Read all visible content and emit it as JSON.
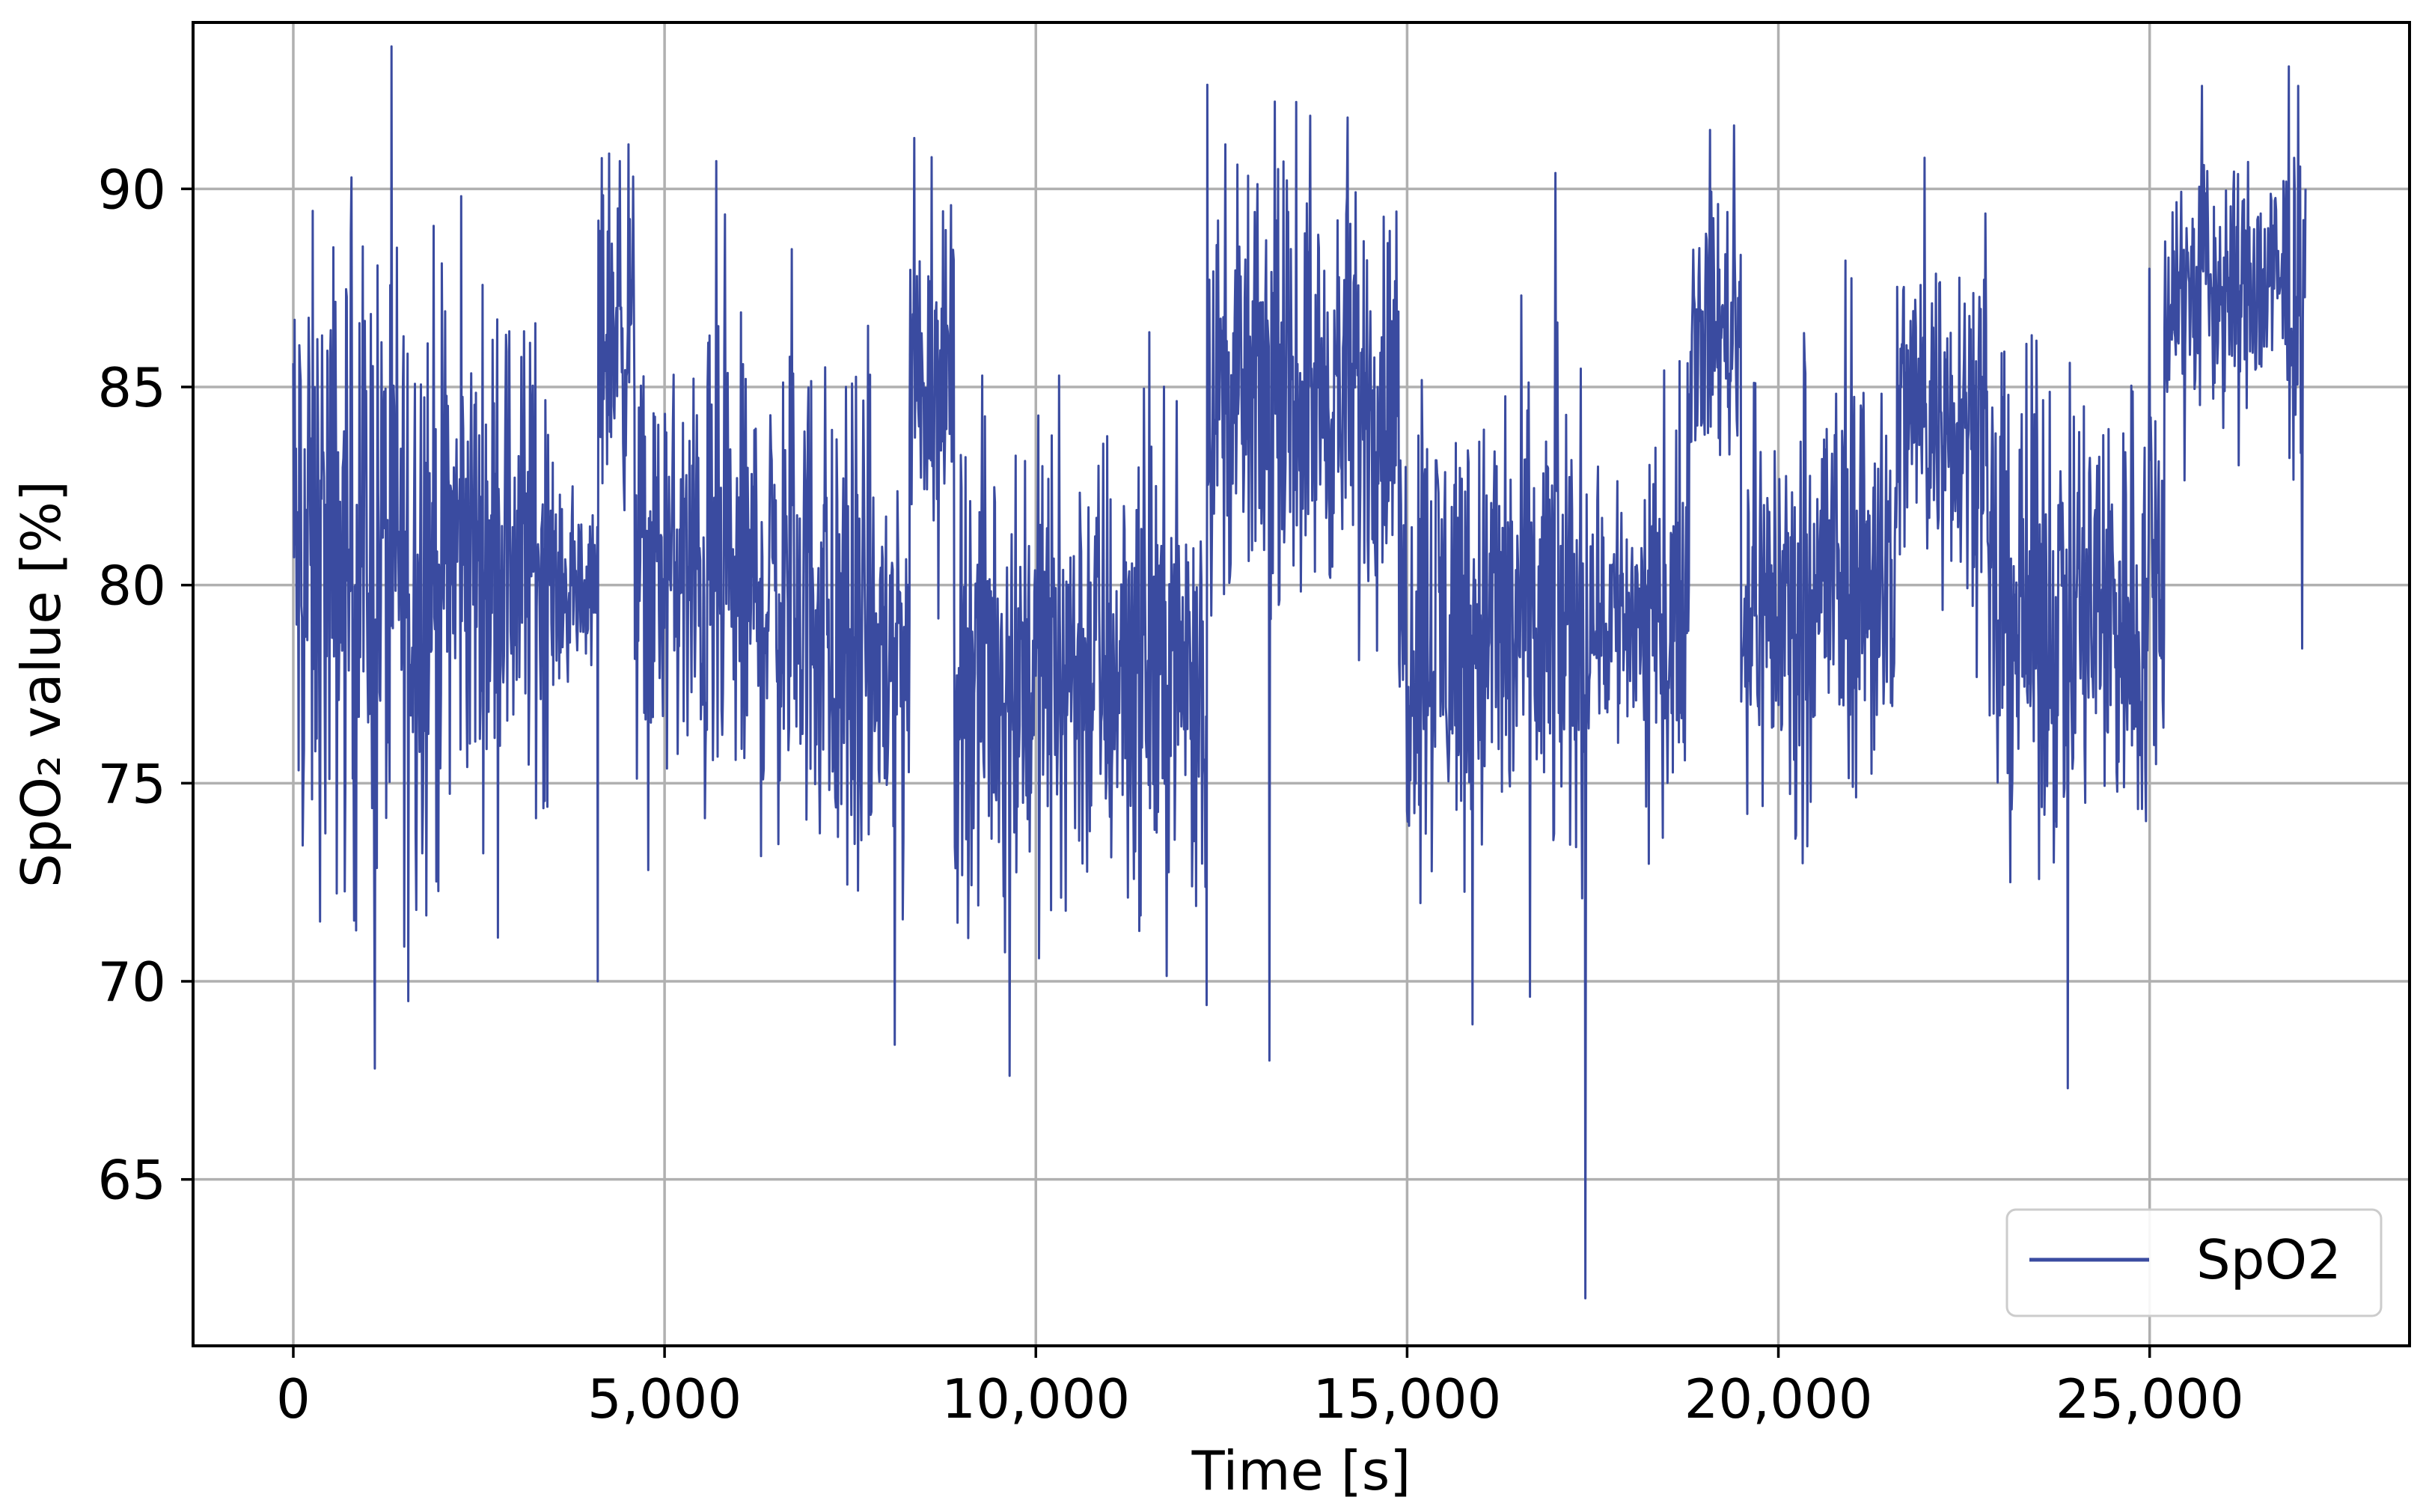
{
  "chart_data": {
    "type": "line",
    "xlabel": "Time [s]",
    "ylabel": "SpO₂ value [%]",
    "xlim": [
      -1350,
      28500
    ],
    "ylim": [
      60.8,
      94.2
    ],
    "x_ticks": [
      0,
      5000,
      10000,
      15000,
      20000,
      25000
    ],
    "x_tick_labels": [
      "0",
      "5,000",
      "10,000",
      "15,000",
      "20,000",
      "25,000"
    ],
    "y_ticks": [
      65,
      70,
      75,
      80,
      85,
      90
    ],
    "y_tick_labels": [
      "65",
      "70",
      "75",
      "80",
      "85",
      "90"
    ],
    "grid": true,
    "legend": {
      "position": "bottom-right",
      "entries": [
        "SpO2"
      ]
    },
    "series": [
      {
        "name": "SpO2",
        "color": "#3a4ba0",
        "segments": [
          {
            "x0": 0,
            "x1": 2000,
            "mean": 80.5,
            "amp": 7.5
          },
          {
            "x0": 2000,
            "x1": 3500,
            "mean": 80.8,
            "amp": 5.5
          },
          {
            "x0": 3500,
            "x1": 4100,
            "mean": 79.8,
            "amp": 2.0
          },
          {
            "x0": 4100,
            "x1": 4600,
            "mean": 86.5,
            "amp": 4.0
          },
          {
            "x0": 4600,
            "x1": 5300,
            "mean": 80.3,
            "amp": 4.5
          },
          {
            "x0": 5300,
            "x1": 7200,
            "mean": 79.8,
            "amp": 5.5
          },
          {
            "x0": 7200,
            "x1": 8300,
            "mean": 78.2,
            "amp": 6.0
          },
          {
            "x0": 8300,
            "x1": 8900,
            "mean": 85.3,
            "amp": 3.5
          },
          {
            "x0": 8900,
            "x1": 12300,
            "mean": 78.0,
            "amp": 5.5
          },
          {
            "x0": 12300,
            "x1": 14900,
            "mean": 84.8,
            "amp": 4.5
          },
          {
            "x0": 14900,
            "x1": 17400,
            "mean": 79.0,
            "amp": 5.5
          },
          {
            "x0": 17400,
            "x1": 18800,
            "mean": 79.3,
            "amp": 3.5
          },
          {
            "x0": 18800,
            "x1": 19500,
            "mean": 86.5,
            "amp": 3.0
          },
          {
            "x0": 19500,
            "x1": 20300,
            "mean": 79.5,
            "amp": 4.5
          },
          {
            "x0": 20300,
            "x1": 21600,
            "mean": 80.3,
            "amp": 5.0
          },
          {
            "x0": 21600,
            "x1": 22800,
            "mean": 84.5,
            "amp": 3.8
          },
          {
            "x0": 22800,
            "x1": 25200,
            "mean": 79.3,
            "amp": 5.5
          },
          {
            "x0": 25200,
            "x1": 27100,
            "mean": 87.5,
            "amp": 3.0
          }
        ],
        "peaks": [
          {
            "x": 0,
            "y": 85.6
          },
          {
            "x": 1100,
            "y": 67.8
          },
          {
            "x": 1550,
            "y": 69.5
          },
          {
            "x": 4100,
            "y": 70.0
          },
          {
            "x": 4400,
            "y": 90.7
          },
          {
            "x": 5700,
            "y": 90.7
          },
          {
            "x": 8100,
            "y": 68.4
          },
          {
            "x": 8600,
            "y": 90.8
          },
          {
            "x": 12300,
            "y": 69.4
          },
          {
            "x": 13150,
            "y": 68.0
          },
          {
            "x": 14200,
            "y": 91.8
          },
          {
            "x": 17000,
            "y": 90.4
          },
          {
            "x": 17400,
            "y": 62.0
          },
          {
            "x": 19400,
            "y": 91.6
          },
          {
            "x": 23900,
            "y": 67.3
          },
          {
            "x": 25700,
            "y": 92.6
          },
          {
            "x": 27000,
            "y": 92.6
          },
          {
            "x": 27050,
            "y": 78.4
          },
          {
            "x": 27100,
            "y": 90.0
          }
        ]
      }
    ]
  }
}
